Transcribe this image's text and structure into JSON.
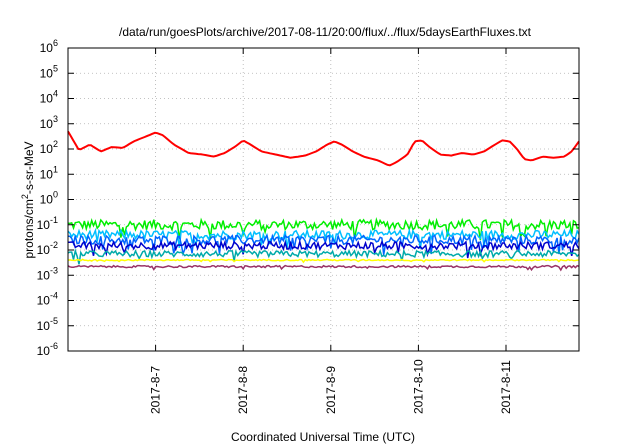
{
  "chart_data": {
    "type": "line",
    "title": "/data/run/goesPlots/archive/2017-08-11/20:00/flux/../flux/5daysEarthFluxes.txt",
    "xlabel": "Coordinated Universal Time (UTC)",
    "ylabel": "protons/cm2-s-sr-MeV",
    "ylabel_base": "protons/cm",
    "ylabel_sup": "2",
    "ylabel_rest": "-s-sr-MeV",
    "yscale": "log",
    "ylim": [
      1e-06,
      1000000.0
    ],
    "xlim": [
      "2017-08-06 00:00",
      "2017-08-11 20:00"
    ],
    "grid": true,
    "legend": "none",
    "x_ticks": [
      "2017-8-7",
      "2017-8-8",
      "2017-8-9",
      "2017-8-10",
      "2017-8-11"
    ],
    "y_ticks": [
      {
        "base": "10",
        "exp": "-6"
      },
      {
        "base": "10",
        "exp": "-5"
      },
      {
        "base": "10",
        "exp": "-4"
      },
      {
        "base": "10",
        "exp": "-3"
      },
      {
        "base": "10",
        "exp": "-2"
      },
      {
        "base": "10",
        "exp": "-1"
      },
      {
        "base": "10",
        "exp": "0"
      },
      {
        "base": "10",
        "exp": "1"
      },
      {
        "base": "10",
        "exp": "2"
      },
      {
        "base": "10",
        "exp": "3"
      },
      {
        "base": "10",
        "exp": "4"
      },
      {
        "base": "10",
        "exp": "5"
      },
      {
        "base": "10",
        "exp": "6"
      }
    ],
    "series": [
      {
        "color": "#ff0000",
        "stroke": 2,
        "noise": 0,
        "points": [
          [
            "2017-08-06 00:00",
            500
          ],
          [
            "2017-08-06 03:00",
            90
          ],
          [
            "2017-08-06 06:00",
            150
          ],
          [
            "2017-08-06 09:00",
            80
          ],
          [
            "2017-08-06 12:00",
            120
          ],
          [
            "2017-08-06 15:00",
            110
          ],
          [
            "2017-08-06 18:00",
            200
          ],
          [
            "2017-08-06 21:00",
            300
          ],
          [
            "2017-08-07 00:00",
            450
          ],
          [
            "2017-08-07 02:00",
            350
          ],
          [
            "2017-08-07 05:00",
            150
          ],
          [
            "2017-08-07 09:00",
            70
          ],
          [
            "2017-08-07 13:00",
            60
          ],
          [
            "2017-08-07 16:00",
            50
          ],
          [
            "2017-08-07 19:00",
            70
          ],
          [
            "2017-08-07 22:00",
            130
          ],
          [
            "2017-08-08 00:00",
            220
          ],
          [
            "2017-08-08 02:00",
            150
          ],
          [
            "2017-08-08 05:00",
            80
          ],
          [
            "2017-08-08 09:00",
            60
          ],
          [
            "2017-08-08 13:00",
            45
          ],
          [
            "2017-08-08 17:00",
            55
          ],
          [
            "2017-08-08 20:00",
            80
          ],
          [
            "2017-08-08 23:00",
            150
          ],
          [
            "2017-08-09 01:00",
            200
          ],
          [
            "2017-08-09 03:00",
            150
          ],
          [
            "2017-08-09 06:00",
            80
          ],
          [
            "2017-08-09 09:00",
            50
          ],
          [
            "2017-08-09 13:00",
            35
          ],
          [
            "2017-08-09 16:00",
            22
          ],
          [
            "2017-08-09 18:00",
            30
          ],
          [
            "2017-08-09 21:00",
            60
          ],
          [
            "2017-08-09 23:00",
            200
          ],
          [
            "2017-08-10 01:00",
            220
          ],
          [
            "2017-08-10 03:00",
            120
          ],
          [
            "2017-08-10 06:00",
            60
          ],
          [
            "2017-08-10 09:00",
            55
          ],
          [
            "2017-08-10 12:00",
            70
          ],
          [
            "2017-08-10 15:00",
            60
          ],
          [
            "2017-08-10 18:00",
            80
          ],
          [
            "2017-08-10 21:00",
            150
          ],
          [
            "2017-08-10 23:00",
            220
          ],
          [
            "2017-08-11 01:00",
            200
          ],
          [
            "2017-08-11 03:00",
            100
          ],
          [
            "2017-08-11 05:00",
            40
          ],
          [
            "2017-08-11 07:00",
            35
          ],
          [
            "2017-08-11 10:00",
            50
          ],
          [
            "2017-08-11 13:00",
            45
          ],
          [
            "2017-08-11 16:00",
            50
          ],
          [
            "2017-08-11 18:00",
            80
          ],
          [
            "2017-08-11 20:00",
            200
          ]
        ]
      },
      {
        "color": "#00ee00",
        "stroke": 1.5,
        "noise": 0.4,
        "points": [
          [
            "2017-08-06 00:00",
            0.1
          ],
          [
            "2017-08-11 20:00",
            0.1
          ]
        ]
      },
      {
        "color": "#00bfff",
        "stroke": 1.5,
        "noise": 0.35,
        "points": [
          [
            "2017-08-06 00:00",
            0.04
          ],
          [
            "2017-08-11 20:00",
            0.04
          ]
        ]
      },
      {
        "color": "#0066ff",
        "stroke": 1.5,
        "noise": 0.35,
        "points": [
          [
            "2017-08-06 00:00",
            0.025
          ],
          [
            "2017-08-11 20:00",
            0.025
          ]
        ]
      },
      {
        "color": "#0000cc",
        "stroke": 1.5,
        "noise": 0.3,
        "points": [
          [
            "2017-08-06 00:00",
            0.015
          ],
          [
            "2017-08-11 20:00",
            0.015
          ]
        ]
      },
      {
        "color": "#00aaaa",
        "stroke": 1.5,
        "noise": 0.25,
        "points": [
          [
            "2017-08-06 00:00",
            0.007
          ],
          [
            "2017-08-11 20:00",
            0.007
          ]
        ]
      },
      {
        "color": "#ffff00",
        "stroke": 1.5,
        "noise": 0.05,
        "points": [
          [
            "2017-08-06 00:00",
            0.004
          ],
          [
            "2017-08-11 20:00",
            0.004
          ]
        ]
      },
      {
        "color": "#993366",
        "stroke": 1.5,
        "noise": 0.08,
        "points": [
          [
            "2017-08-06 00:00",
            0.0022
          ],
          [
            "2017-08-11 20:00",
            0.0022
          ]
        ]
      }
    ]
  }
}
